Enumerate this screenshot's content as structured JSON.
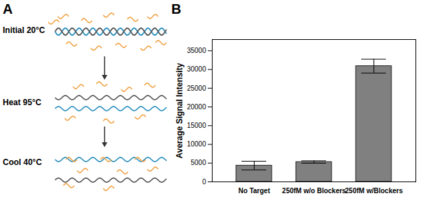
{
  "diagram": {
    "panel_label": "A",
    "steps": [
      "Initial 20°C",
      "Heat 95°C",
      "Cool 40°C"
    ]
  },
  "chart_data": {
    "type": "bar",
    "panel_label": "B",
    "categories": [
      "No Target",
      "250fM w/o Blockers",
      "250fM w/Blockers"
    ],
    "values": [
      4350,
      5300,
      30900
    ],
    "errors": [
      1150,
      320,
      1850
    ],
    "color": "#808080",
    "ylabel": "Average Signal Intensity",
    "ylim": [
      0,
      38000
    ],
    "yticks": [
      0,
      5000,
      10000,
      15000,
      20000,
      25000,
      30000,
      35000
    ],
    "grid": false
  }
}
